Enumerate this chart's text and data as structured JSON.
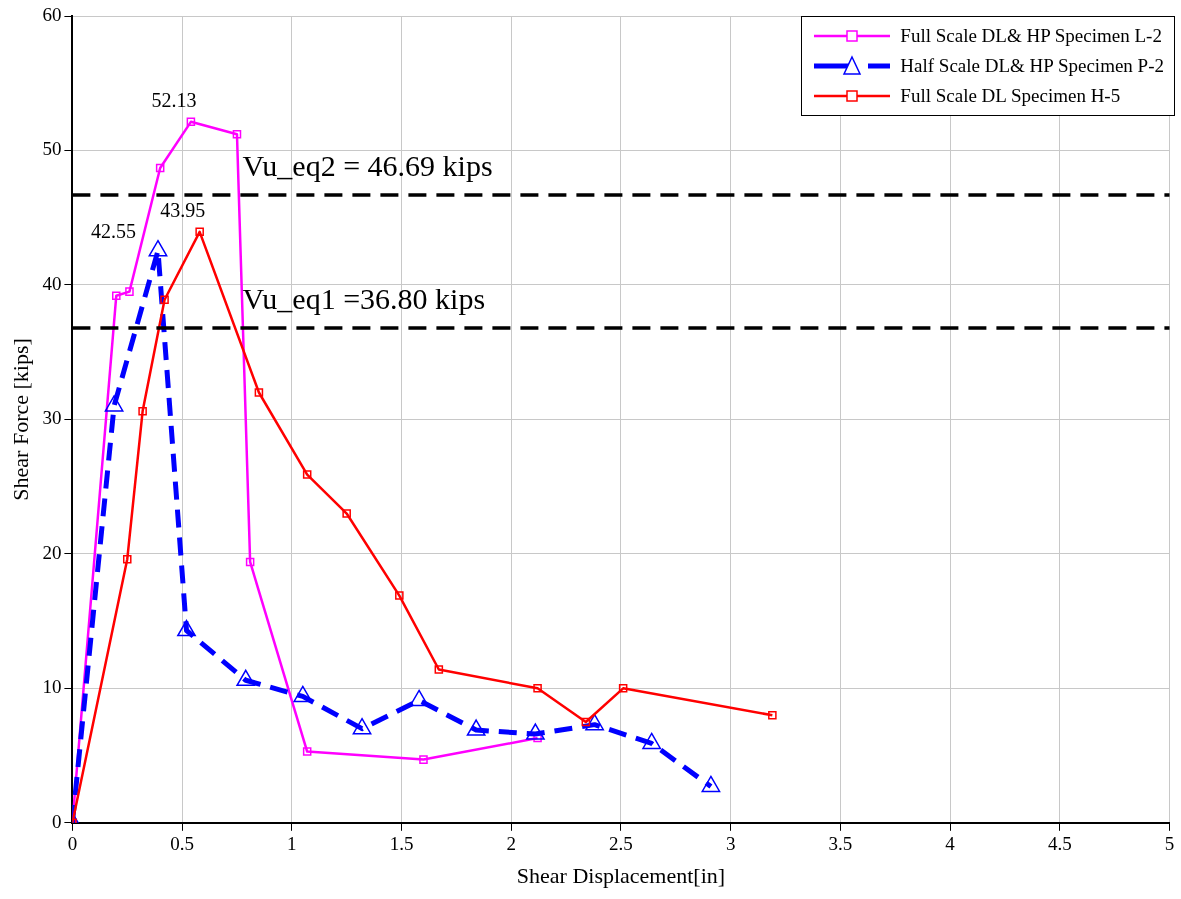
{
  "chart_data": {
    "type": "line",
    "xlabel": "Shear Displacement[in]",
    "ylabel": "Shear Force [kips]",
    "xlim": [
      0,
      5
    ],
    "xticks": [
      0,
      0.5,
      1,
      1.5,
      2,
      2.5,
      3,
      3.5,
      4,
      4.5,
      5
    ],
    "ylim": [
      0,
      60
    ],
    "yticks": [
      0,
      10,
      20,
      30,
      40,
      50,
      60
    ],
    "grid": true,
    "legend": "top right",
    "series": [
      {
        "name": "Full Scale DL& HP Specimen L-2",
        "color": "#ff00ff",
        "marker": "square",
        "line_style": "solid",
        "x": [
          0,
          0.2,
          0.26,
          0.4,
          0.54,
          0.75,
          0.81,
          1.07,
          1.6,
          2.12
        ],
        "values": [
          0,
          39.2,
          39.5,
          48.7,
          52.13,
          51.2,
          19.4,
          5.3,
          4.7,
          6.3
        ]
      },
      {
        "name": "Half Scale DL& HP Specimen P-2",
        "color": "#0000ff",
        "marker": "triangle",
        "line_style": "dashed",
        "x": [
          0,
          0.19,
          0.39,
          0.52,
          0.79,
          1.05,
          1.32,
          1.58,
          1.84,
          2.11,
          2.38,
          2.64,
          2.91
        ],
        "values": [
          0,
          31.0,
          42.55,
          14.3,
          10.6,
          9.4,
          7.0,
          9.1,
          6.9,
          6.6,
          7.3,
          5.9,
          2.7
        ]
      },
      {
        "name": "Full Scale DL Specimen H-5",
        "color": "#ff0000",
        "marker": "square",
        "line_style": "solid",
        "x": [
          0,
          0.25,
          0.32,
          0.42,
          0.58,
          0.85,
          1.07,
          1.25,
          1.49,
          1.67,
          2.12,
          2.34,
          2.51,
          3.19
        ],
        "values": [
          0,
          19.6,
          30.6,
          38.9,
          43.95,
          32.0,
          25.9,
          23.0,
          16.9,
          11.4,
          10.0,
          7.5,
          10.0,
          8.0
        ]
      }
    ],
    "ref_lines": [
      {
        "axis": "y",
        "value": 46.69,
        "label": "Vu_eq2 = 46.69 kips",
        "color": "#000000",
        "line_style": "dashed"
      },
      {
        "axis": "y",
        "value": 36.8,
        "label": "Vu_eq1 =36.80 kips",
        "color": "#000000",
        "line_style": "dashed"
      }
    ],
    "annotations": [
      {
        "text": "52.13",
        "x": 0.54,
        "y": 52.13
      },
      {
        "text": "42.55",
        "x": 0.39,
        "y": 42.55
      },
      {
        "text": "43.95",
        "x": 0.58,
        "y": 43.95
      }
    ]
  }
}
